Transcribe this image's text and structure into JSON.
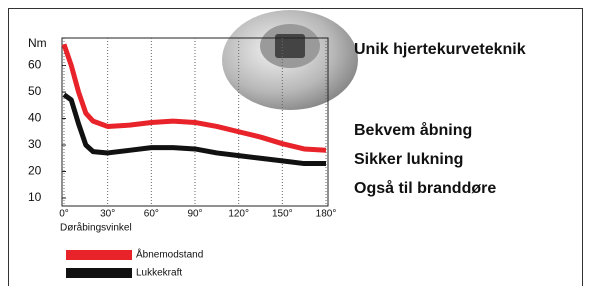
{
  "chart_data": {
    "type": "line",
    "y_label": "Nm",
    "x_label": "Døråbingsvinkel",
    "xlim": [
      0,
      180
    ],
    "xticks": [
      {
        "value": 0,
        "label": "0°"
      },
      {
        "value": 30,
        "label": "30°"
      },
      {
        "value": 60,
        "label": "60°"
      },
      {
        "value": 90,
        "label": "90°"
      },
      {
        "value": 120,
        "label": "120°"
      },
      {
        "value": 150,
        "label": "150°"
      },
      {
        "value": 180,
        "label": "180°"
      }
    ],
    "ylim": [
      10,
      70
    ],
    "yticks": [
      10,
      20,
      30,
      40,
      50,
      60
    ],
    "grid": true,
    "x": [
      0,
      5,
      10,
      15,
      20,
      30,
      45,
      60,
      75,
      90,
      105,
      120,
      135,
      150,
      165,
      180
    ],
    "series": [
      {
        "name": "Åbnemodstand",
        "color": "#e8232a",
        "values": [
          68,
          60,
          50,
          42,
          39,
          37,
          37.5,
          38.5,
          39,
          38.5,
          37,
          35,
          33,
          30.5,
          28.5,
          28
        ]
      },
      {
        "name": "Lukkekraft",
        "color": "#111111",
        "values": [
          49,
          47,
          38,
          30,
          27.5,
          27,
          28,
          29,
          29,
          28.5,
          27,
          26,
          25,
          24,
          23,
          23
        ]
      }
    ]
  },
  "side": {
    "headline": "Unik hjertekurveteknik",
    "points": [
      "Bekvem åbning",
      "Sikker lukning",
      "Også til branddøre"
    ]
  }
}
